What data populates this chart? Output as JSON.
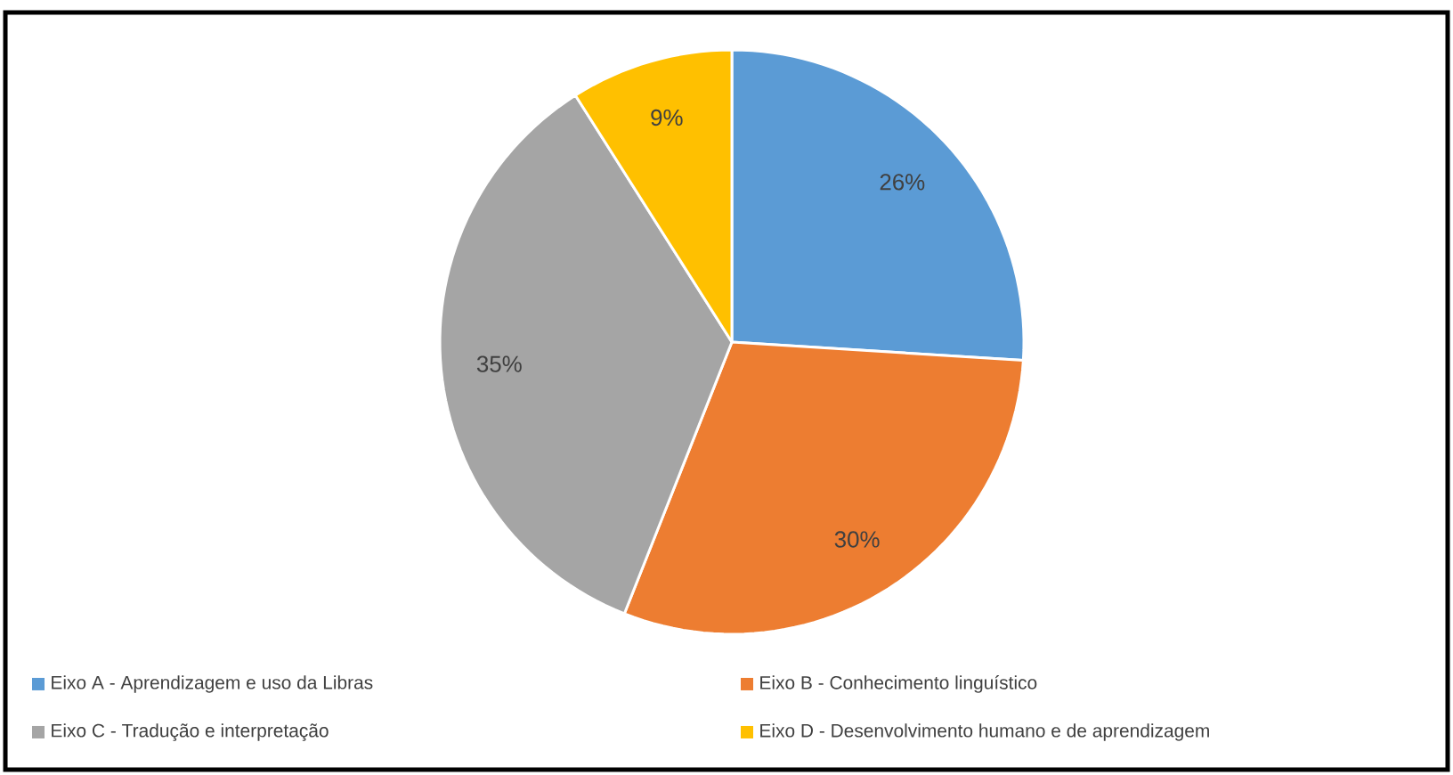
{
  "chart_data": {
    "type": "pie",
    "categories": [
      "Eixo A - Aprendizagem e uso da Libras",
      "Eixo B - Conhecimento linguístico",
      "Eixo C - Tradução e interpretação",
      "Eixo D - Desenvolvimento humano e de aprendizagem"
    ],
    "values": [
      26,
      30,
      35,
      9
    ],
    "colors": [
      "#5b9bd5",
      "#ed7d31",
      "#a5a5a5",
      "#ffc000"
    ],
    "value_labels": [
      "26%",
      "30%",
      "35%",
      "9%"
    ],
    "legend": "bottom"
  }
}
